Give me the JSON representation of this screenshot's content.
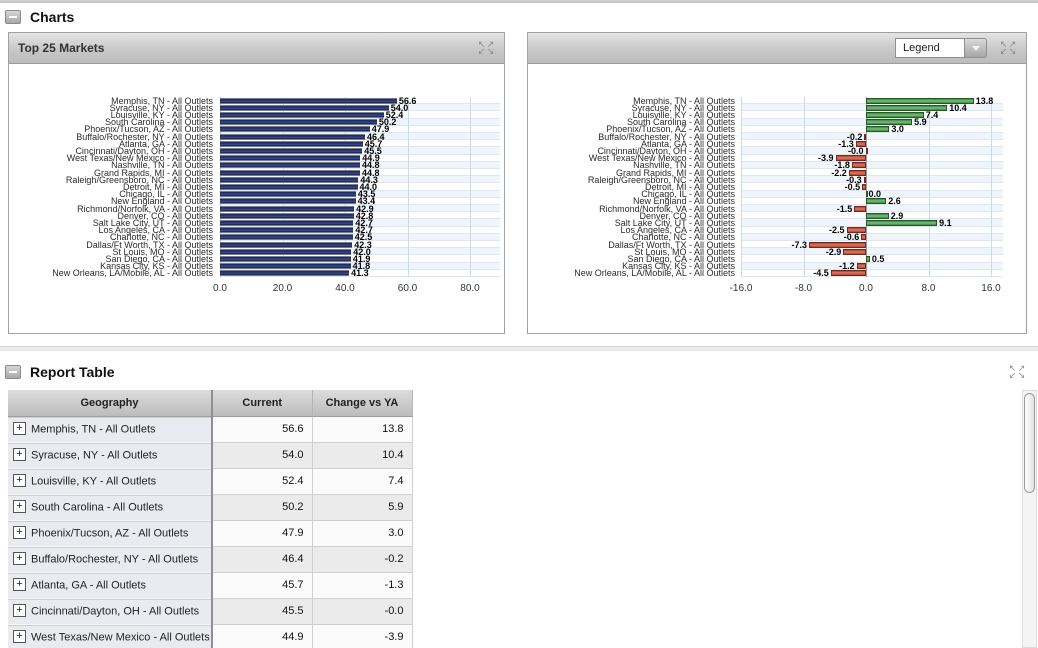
{
  "sections": {
    "charts": "Charts",
    "report": "Report Table"
  },
  "left_chart": {
    "title": "Top 25 Markets"
  },
  "right_chart": {
    "legend_label": "Legend"
  },
  "icons": {
    "collapse_minus": "−",
    "expand_arrows": [
      "↖",
      "↗",
      "↙",
      "↘"
    ],
    "dropdown_arrow": "▼",
    "row_expand_plus": "+"
  },
  "colors": {
    "bar_navy": "#1d2a66",
    "bar_green": "#4f9a50",
    "bar_red": "#c65a41",
    "grid_blue": "#c9daeb",
    "geo_cell_bg": "#e9ebf1"
  },
  "chart_data": [
    {
      "type": "bar",
      "orientation": "horizontal",
      "title": "Top 25 Markets",
      "categories": [
        "Memphis, TN - All Outlets",
        "Syracuse, NY - All Outlets",
        "Louisville, KY - All Outlets",
        "South Carolina - All Outlets",
        "Phoenix/Tucson, AZ - All Outlets",
        "Buffalo/Rochester, NY - All Outlets",
        "Atlanta, GA - All Outlets",
        "Cincinnati/Dayton, OH - All Outlets",
        "West Texas/New Mexico - All Outlets",
        "Nashville, TN - All Outlets",
        "Grand Rapids, MI - All Outlets",
        "Raleigh/Greensboro, NC - All Outlets",
        "Detroit, MI - All Outlets",
        "Chicago, IL - All Outlets",
        "New England - All Outlets",
        "Richmond/Norfolk, VA - All Outlets",
        "Denver, CO - All Outlets",
        "Salt Lake City, UT - All Outlets",
        "Los Angeles, CA - All Outlets",
        "Charlotte, NC - All Outlets",
        "Dallas/Ft Worth, TX - All Outlets",
        "St Louis, MO - All Outlets",
        "San Diego, CA - All Outlets",
        "Kansas City, KS - All Outlets",
        "New Orleans, LA/Mobile, AL - All Outlets"
      ],
      "values": [
        56.6,
        54.0,
        52.4,
        50.2,
        47.9,
        46.4,
        45.7,
        45.5,
        44.9,
        44.8,
        44.8,
        44.3,
        44.0,
        43.5,
        43.4,
        42.9,
        42.8,
        42.7,
        42.7,
        42.5,
        42.3,
        42.0,
        41.9,
        41.8,
        41.3
      ],
      "labels": [
        "56.6",
        "54.0",
        "52.4",
        "50.2",
        "47.9",
        "46.4",
        "45.7",
        "45.5",
        "44.9",
        "44.8",
        "44.8",
        "44.3",
        "44.0",
        "43.5",
        "43.4",
        "42.9",
        "42.8",
        "42.7",
        "42.7",
        "42.5",
        "42.3",
        "42.0",
        "41.9",
        "41.8",
        "41.3"
      ],
      "xlim": [
        0,
        80
      ],
      "xticks": [
        "0.0",
        "20.0",
        "40.0",
        "60.0",
        "80.0"
      ],
      "series_name": "Current",
      "grid": true,
      "legend": "none"
    },
    {
      "type": "bar",
      "orientation": "horizontal",
      "title": "",
      "categories": [
        "Memphis, TN - All Outlets",
        "Syracuse, NY - All Outlets",
        "Louisville, KY - All Outlets",
        "South Carolina - All Outlets",
        "Phoenix/Tucson, AZ - All Outlets",
        "Buffalo/Rochester, NY - All Outlets",
        "Atlanta, GA - All Outlets",
        "Cincinnati/Dayton, OH - All Outlets",
        "West Texas/New Mexico - All Outlets",
        "Nashville, TN - All Outlets",
        "Grand Rapids, MI - All Outlets",
        "Raleigh/Greensboro, NC - All Outlets",
        "Detroit, MI - All Outlets",
        "Chicago, IL - All Outlets",
        "New England - All Outlets",
        "Richmond/Norfolk, VA - All Outlets",
        "Denver, CO - All Outlets",
        "Salt Lake City, UT - All Outlets",
        "Los Angeles, CA - All Outlets",
        "Charlotte, NC - All Outlets",
        "Dallas/Ft Worth, TX - All Outlets",
        "St Louis, MO - All Outlets",
        "San Diego, CA - All Outlets",
        "Kansas City, KS - All Outlets",
        "New Orleans, LA/Mobile, AL - All Outlets"
      ],
      "values": [
        13.8,
        10.4,
        7.4,
        5.9,
        3.0,
        -0.2,
        -1.3,
        -0.0,
        -3.9,
        -1.8,
        -2.2,
        -0.3,
        -0.5,
        0.0,
        2.6,
        -1.5,
        2.9,
        9.1,
        -2.5,
        -0.6,
        -7.3,
        -2.9,
        0.5,
        -1.2,
        -4.5
      ],
      "labels": [
        "13.8",
        "10.4",
        "7.4",
        "5.9",
        "3.0",
        "-0.2",
        "-1.3",
        "-0.0",
        "-3.9",
        "-1.8",
        "-2.2",
        "-0.3",
        "-0.5",
        "0.0",
        "2.6",
        "-1.5",
        "2.9",
        "9.1",
        "-2.5",
        "-0.6",
        "-7.3",
        "-2.9",
        "0.5",
        "-1.2",
        "-4.5"
      ],
      "xlim": [
        -16,
        16
      ],
      "xticks": [
        "-16.0",
        "-8.0",
        "0.0",
        "8.0",
        "16.0"
      ],
      "series_name": "Change vs YA",
      "grid": true,
      "legend": "dropdown-collapsed"
    }
  ],
  "table": {
    "columns": [
      "Geography",
      "Current",
      "Change vs YA"
    ],
    "rows": [
      [
        "Memphis, TN - All Outlets",
        "56.6",
        "13.8"
      ],
      [
        "Syracuse, NY - All Outlets",
        "54.0",
        "10.4"
      ],
      [
        "Louisville, KY - All Outlets",
        "52.4",
        "7.4"
      ],
      [
        "South Carolina - All Outlets",
        "50.2",
        "5.9"
      ],
      [
        "Phoenix/Tucson, AZ - All Outlets",
        "47.9",
        "3.0"
      ],
      [
        "Buffalo/Rochester, NY - All Outlets",
        "46.4",
        "-0.2"
      ],
      [
        "Atlanta, GA - All Outlets",
        "45.7",
        "-1.3"
      ],
      [
        "Cincinnati/Dayton, OH - All Outlets",
        "45.5",
        "-0.0"
      ],
      [
        "West Texas/New Mexico - All Outlets",
        "44.9",
        "-3.9"
      ]
    ]
  }
}
